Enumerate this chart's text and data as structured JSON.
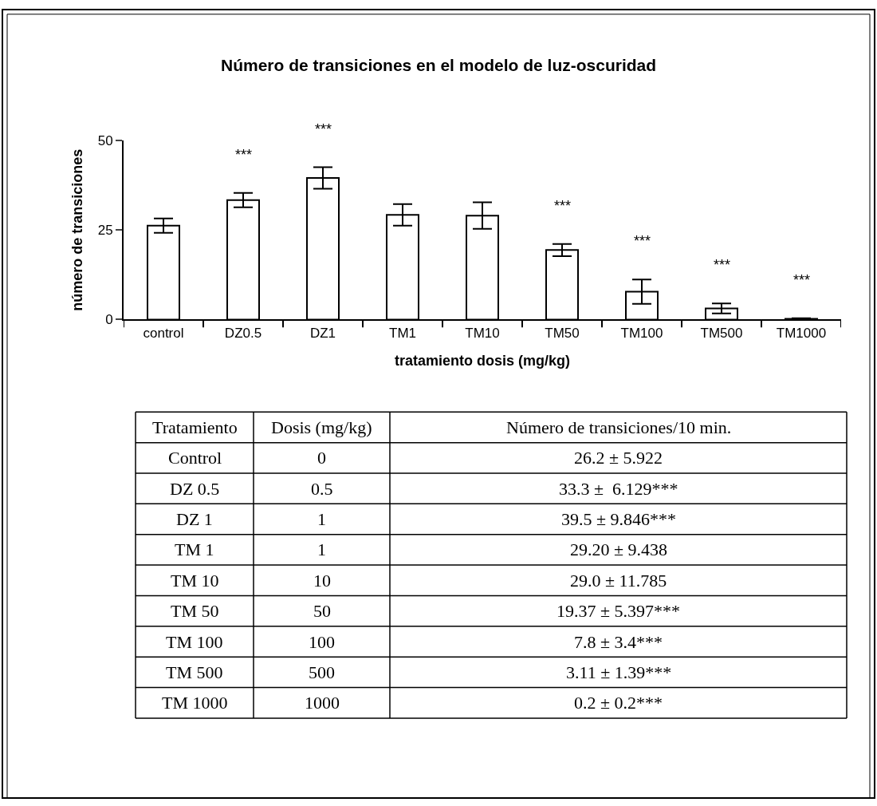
{
  "chart_data": [
    {
      "type": "bar",
      "title": "Número de transiciones en el modelo de luz-oscuridad",
      "xlabel": "tratamiento dosis (mg/kg)",
      "ylabel": "número de transiciones",
      "categories": [
        "control",
        "DZ0.5",
        "DZ1",
        "TM1",
        "TM10",
        "TM50",
        "TM100",
        "TM500",
        "TM1000"
      ],
      "values": [
        26.2,
        33.3,
        39.5,
        29.2,
        29.0,
        19.4,
        7.8,
        3.1,
        0.2
      ],
      "value_labels": [
        null,
        "***",
        "***",
        null,
        null,
        "***",
        "***",
        "***",
        "***"
      ],
      "errors": [
        2,
        2,
        3,
        3,
        3.7,
        1.7,
        3.4,
        1.4,
        0.2
      ],
      "color": "#ffffff",
      "ylim": [
        0,
        50
      ],
      "yticks": [
        0,
        25,
        50
      ]
    },
    {
      "type": "other",
      "annotations": [
        "Tratamiento",
        "Dosis (mg/kg)",
        "Número de transiciones/10 min.",
        "Control",
        "0",
        "26.2 ± 5.922",
        "DZ 0.5",
        "0.5",
        "33.3 ±  6.129***",
        "DZ 1",
        "1",
        "39.5 ± 9.846***",
        "TM 1",
        "1",
        "29.20 ± 9.438",
        "TM 10",
        "10",
        "29.0 ± 11.785",
        "TM 50",
        "50",
        "19.37 ± 5.397***",
        "TM 100",
        "100",
        "7.8 ± 3.4***",
        "TM 500",
        "500",
        "3.11 ± 1.39***",
        "TM 1000",
        "1000",
        "0.2 ± 0.2***"
      ]
    }
  ]
}
